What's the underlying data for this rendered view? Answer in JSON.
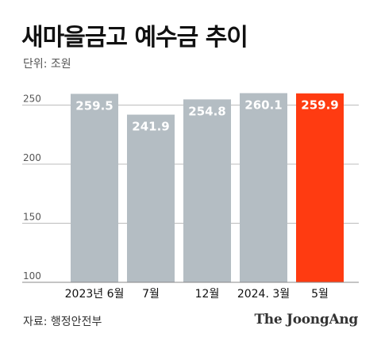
{
  "header": {
    "title": "새마을금고 예수금 추이",
    "unit": "단위: 조원"
  },
  "footer": {
    "source": "자료: 행정안전부",
    "brand": "The JoongAng"
  },
  "colors": {
    "bar": "#b4bdc3",
    "highlight": "#ff3b11",
    "grid": "#bcbcbc"
  },
  "chart_data": {
    "type": "bar",
    "categories": [
      "2023년 6월",
      "7월",
      "12월",
      "2024. 3월",
      "5월"
    ],
    "values": [
      259.5,
      241.9,
      254.8,
      260.1,
      259.9
    ],
    "value_labels": [
      "259.5",
      "241.9",
      "254.8",
      "260.1",
      "259.9"
    ],
    "highlight_index": 4,
    "ylim": [
      100,
      265
    ],
    "yticks": [
      100,
      150,
      200,
      250
    ],
    "grid": true,
    "title": "새마을금고 예수금 추이",
    "ylabel": "단위: 조원",
    "xlabel": ""
  }
}
